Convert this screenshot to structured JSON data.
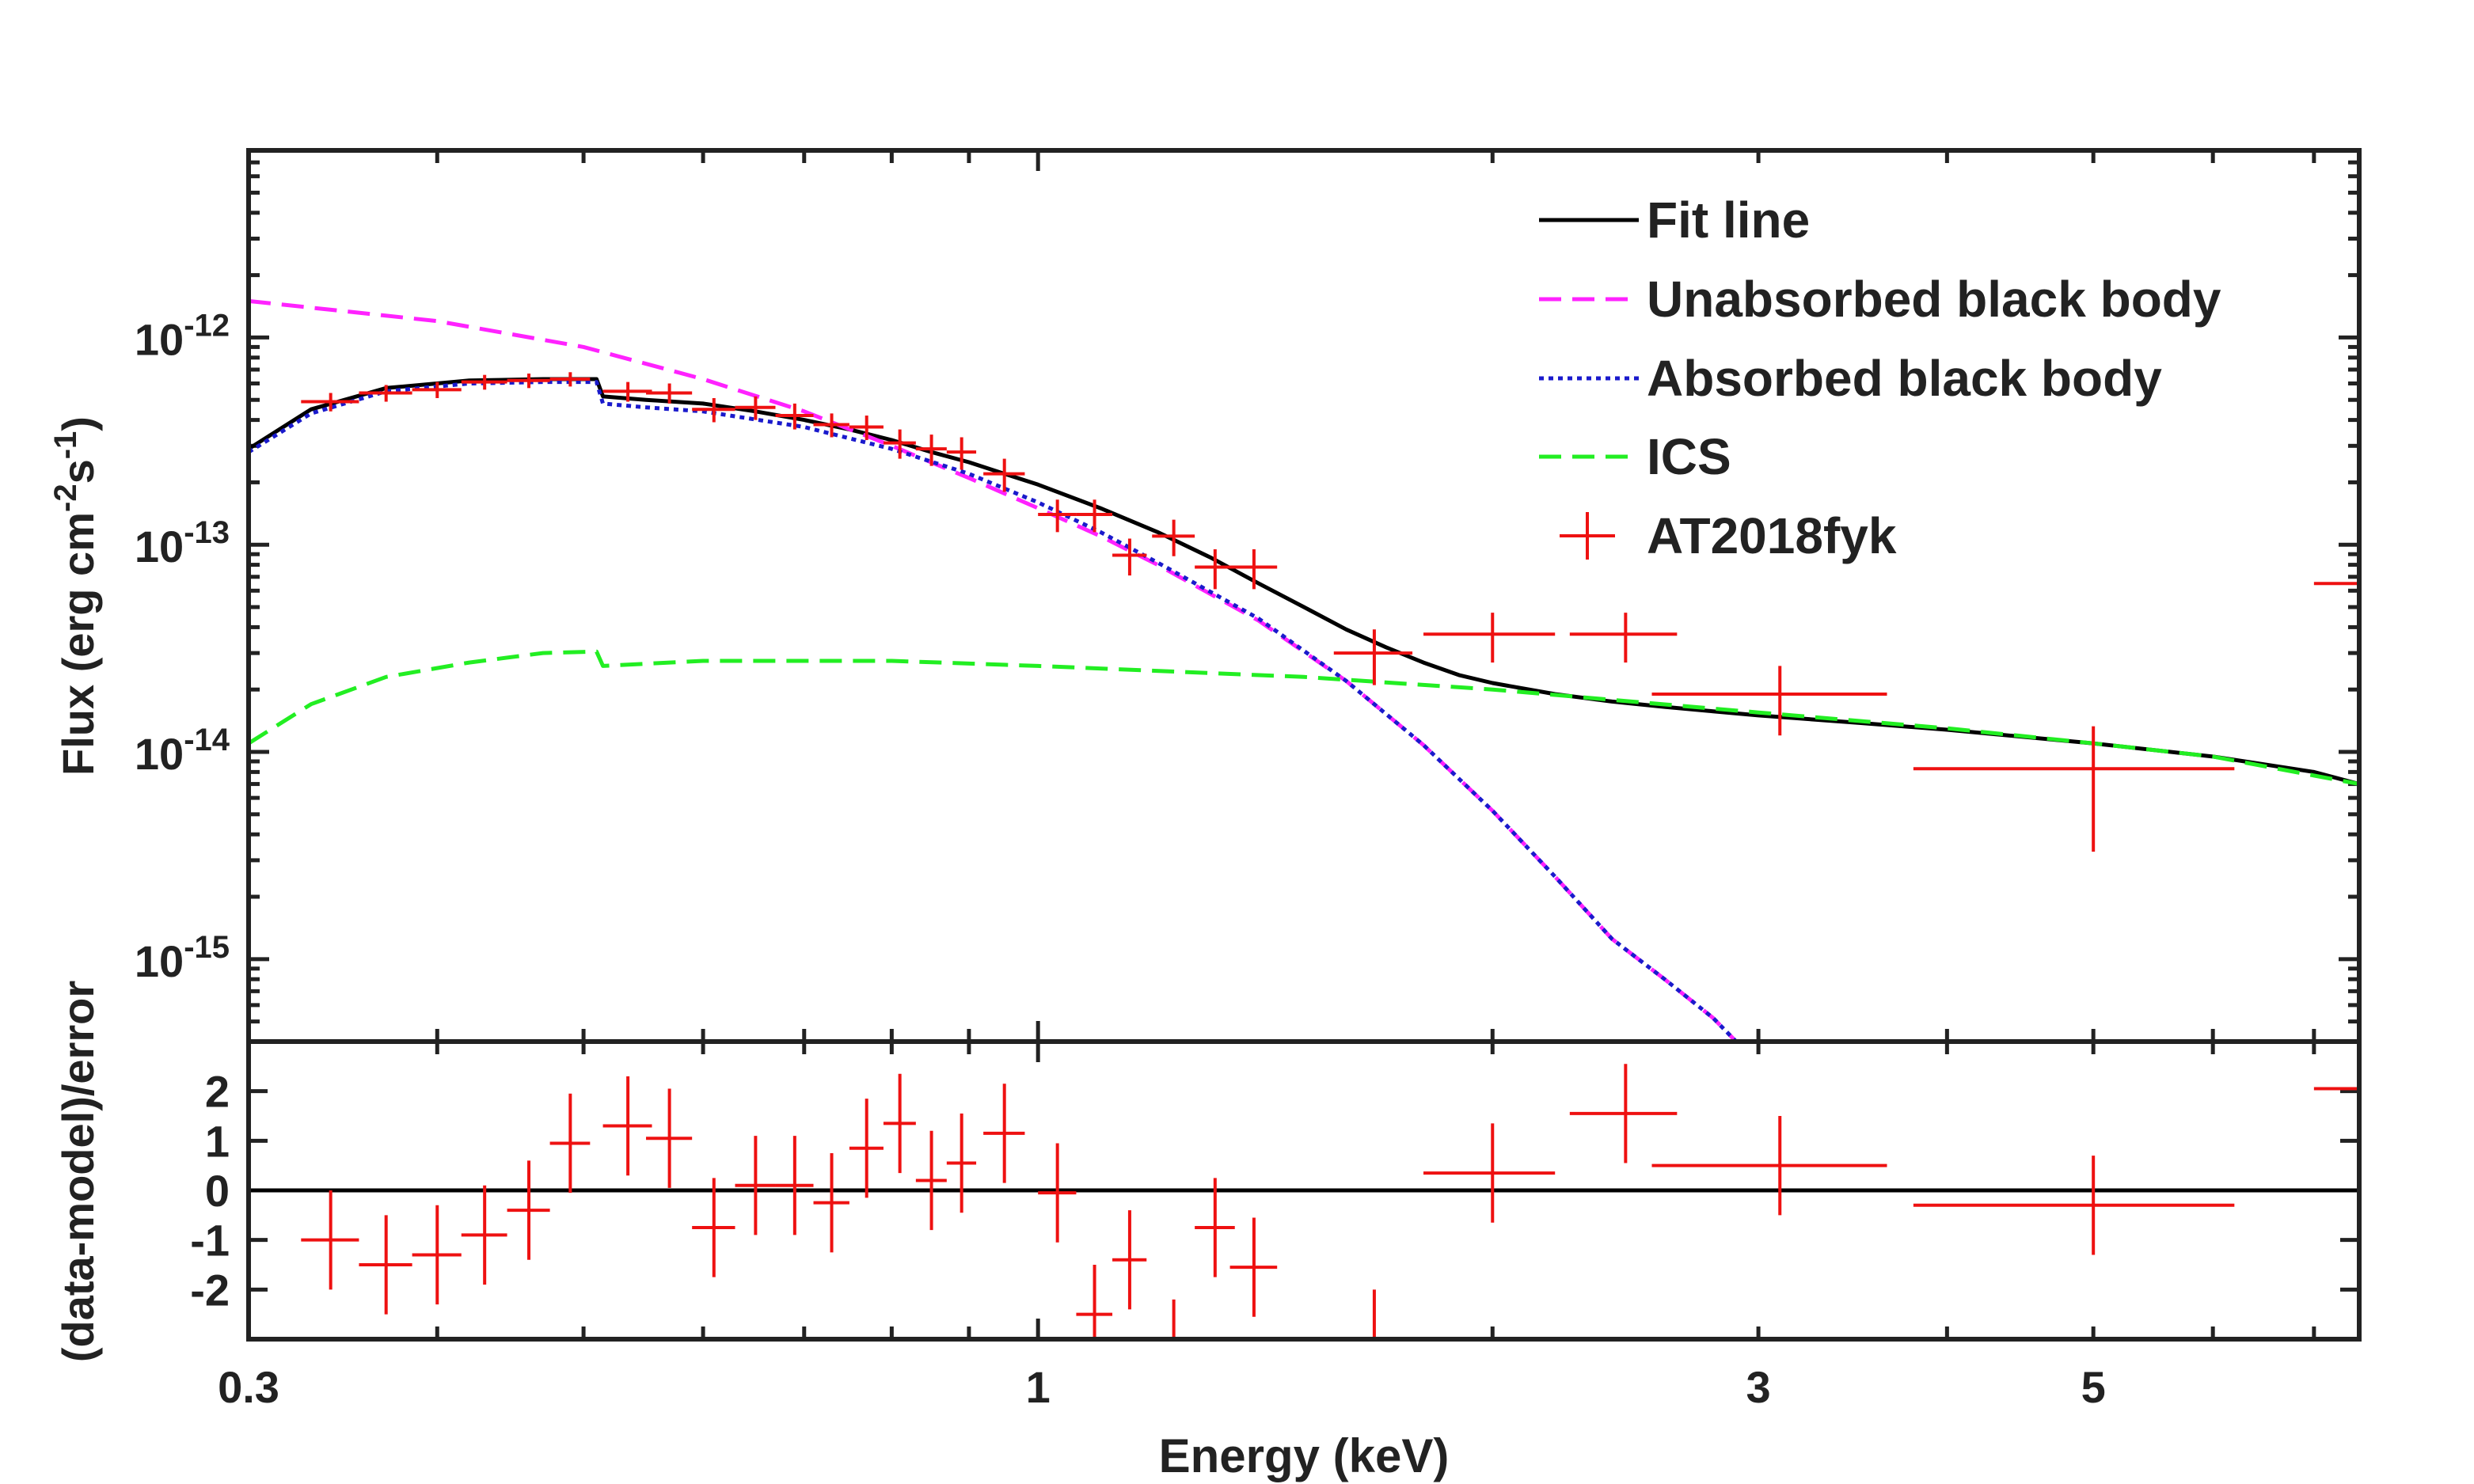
{
  "figure": {
    "title": "",
    "x_label": "Energy (keV)"
  },
  "colors": {
    "axis": "#222222",
    "fit_line": "#000000",
    "unabsorbed_bb": "#ff22ff",
    "absorbed_bb": "#1a1acc",
    "ics": "#22ee22",
    "data": "#ee1111"
  },
  "chart_data": [
    {
      "type": "line",
      "panel": "spectrum",
      "title": "",
      "xlabel": "Energy (keV)",
      "ylabel_text": "Flux (erg cm",
      "ylabel_sup1": "-2",
      "ylabel_mid": "s",
      "ylabel_sup2": "-1",
      "ylabel_close": ")",
      "xscale": "log",
      "yscale": "log",
      "xlim": [
        0.3,
        7.5
      ],
      "ylim": [
        4e-16,
        8e-12
      ],
      "yticks": [
        {
          "value": 1e-12,
          "base": "10",
          "exp": "-12"
        },
        {
          "value": 1e-13,
          "base": "10",
          "exp": "-13"
        },
        {
          "value": 1e-14,
          "base": "10",
          "exp": "-14"
        },
        {
          "value": 1e-15,
          "base": "10",
          "exp": "-15"
        }
      ],
      "legend": {
        "position": "top-right",
        "entries": [
          {
            "label": "Fit line",
            "style": "solid",
            "color": "#000000"
          },
          {
            "label": "Unabsorbed black body",
            "style": "dashed",
            "color": "#ff22ff"
          },
          {
            "label": "Absorbed black body",
            "style": "dotted",
            "color": "#1a1acc"
          },
          {
            "label": "ICS",
            "style": "dashed",
            "color": "#22ee22"
          },
          {
            "label": "AT2018fyk",
            "style": "errorbar",
            "color": "#ee1111"
          }
        ]
      },
      "series": [
        {
          "name": "Fit line",
          "style": "solid",
          "color": "#000000",
          "x": [
            0.3,
            0.33,
            0.37,
            0.42,
            0.47,
            0.51,
            0.515,
            0.55,
            0.6,
            0.65,
            0.7,
            0.75,
            0.8,
            0.85,
            0.9,
            0.95,
            1.0,
            1.1,
            1.2,
            1.3,
            1.4,
            1.5,
            1.6,
            1.7,
            1.8,
            1.9,
            2.0,
            2.2,
            2.4,
            2.6,
            2.8,
            3.0,
            3.5,
            4.0,
            5.0,
            6.0,
            7.0,
            7.5
          ],
          "y": [
            2.9e-13,
            4.5e-13,
            5.7e-13,
            6.2e-13,
            6.3e-13,
            6.3e-13,
            5.2e-13,
            5e-13,
            4.8e-13,
            4.4e-13,
            4e-13,
            3.6e-13,
            3.2e-13,
            2.8e-13,
            2.5e-13,
            2.2e-13,
            1.95e-13,
            1.5e-13,
            1.15e-13,
            8.7e-14,
            6.5e-14,
            5e-14,
            3.9e-14,
            3.2e-14,
            2.7e-14,
            2.35e-14,
            2.15e-14,
            1.9e-14,
            1.75e-14,
            1.65e-14,
            1.57e-14,
            1.5e-14,
            1.38e-14,
            1.28e-14,
            1.1e-14,
            9.5e-15,
            8e-15,
            7e-15
          ]
        },
        {
          "name": "Unabsorbed black body",
          "style": "dashed",
          "color": "#ff22ff",
          "x": [
            0.3,
            0.4,
            0.5,
            0.6,
            0.7,
            0.8,
            0.9,
            1.0,
            1.1,
            1.2,
            1.4,
            1.6,
            1.8,
            2.0,
            2.2,
            2.4,
            2.6,
            2.8,
            2.9
          ],
          "y": [
            1.5e-12,
            1.2e-12,
            9e-13,
            6.3e-13,
            4.4e-13,
            3e-13,
            2.1e-13,
            1.5e-13,
            1.1e-13,
            8e-14,
            4.3e-14,
            2.2e-14,
            1.08e-14,
            5.2e-15,
            2.5e-15,
            1.25e-15,
            8e-16,
            5.2e-16,
            4e-16
          ]
        },
        {
          "name": "Absorbed black body",
          "style": "dotted",
          "color": "#1a1acc",
          "x": [
            0.3,
            0.33,
            0.37,
            0.42,
            0.47,
            0.51,
            0.515,
            0.55,
            0.6,
            0.7,
            0.8,
            0.9,
            1.0,
            1.1,
            1.2,
            1.4,
            1.6,
            1.8,
            2.0,
            2.2,
            2.4,
            2.6,
            2.8,
            2.9
          ],
          "y": [
            2.8e-13,
            4.3e-13,
            5.5e-13,
            6e-13,
            6.1e-13,
            6.1e-13,
            4.8e-13,
            4.6e-13,
            4.4e-13,
            3.7e-13,
            2.9e-13,
            2.2e-13,
            1.6e-13,
            1.15e-13,
            8.2e-14,
            4.4e-14,
            2.2e-14,
            1.08e-14,
            5.2e-15,
            2.5e-15,
            1.25e-15,
            8e-16,
            5.2e-16,
            4e-16
          ]
        },
        {
          "name": "ICS",
          "style": "dashed",
          "color": "#22ee22",
          "x": [
            0.3,
            0.33,
            0.37,
            0.42,
            0.47,
            0.51,
            0.515,
            0.6,
            0.8,
            1.0,
            1.5,
            2.0,
            3.0,
            4.0,
            5.0,
            6.0,
            7.5
          ],
          "y": [
            1.1e-14,
            1.7e-14,
            2.3e-14,
            2.7e-14,
            3e-14,
            3.05e-14,
            2.6e-14,
            2.75e-14,
            2.75e-14,
            2.6e-14,
            2.3e-14,
            2e-14,
            1.55e-14,
            1.3e-14,
            1.1e-14,
            9.5e-15,
            7e-15
          ]
        }
      ],
      "data_points": {
        "name": "AT2018fyk",
        "color": "#ee1111",
        "x": [
          0.34,
          0.37,
          0.4,
          0.43,
          0.46,
          0.49,
          0.535,
          0.57,
          0.61,
          0.65,
          0.69,
          0.73,
          0.77,
          0.81,
          0.85,
          0.89,
          0.95,
          1.03,
          1.09,
          1.15,
          1.23,
          1.31,
          1.39,
          1.67,
          2.0,
          2.45,
          3.1,
          5.0,
          7.8
        ],
        "xerr": [
          0.015,
          0.015,
          0.015,
          0.015,
          0.015,
          0.015,
          0.02,
          0.02,
          0.02,
          0.02,
          0.02,
          0.02,
          0.02,
          0.02,
          0.02,
          0.02,
          0.03,
          0.03,
          0.03,
          0.03,
          0.04,
          0.04,
          0.05,
          0.1,
          0.2,
          0.2,
          0.55,
          1.2,
          0.8
        ],
        "y": [
          4.9e-13,
          5.4e-13,
          5.6e-13,
          6.1e-13,
          6.2e-13,
          6.3e-13,
          5.5e-13,
          5.4e-13,
          4.5e-13,
          4.6e-13,
          4.2e-13,
          3.8e-13,
          3.7e-13,
          3.1e-13,
          2.9e-13,
          2.8e-13,
          2.2e-13,
          1.4e-13,
          1.4e-13,
          8.9e-14,
          1.1e-13,
          7.8e-14,
          7.8e-14,
          3e-14,
          3.7e-14,
          3.7e-14,
          1.9e-14,
          8.3e-15,
          6.5e-14
        ],
        "yerr": [
          5e-14,
          5e-14,
          5e-14,
          5e-14,
          5e-14,
          5e-14,
          6e-14,
          6e-14,
          6e-14,
          6e-14,
          6e-14,
          5e-14,
          5e-14,
          5e-14,
          5e-14,
          5e-14,
          4e-14,
          2.5e-14,
          2.5e-14,
          1.8e-14,
          2.2e-14,
          1.7e-14,
          1.7e-14,
          9e-15,
          1e-14,
          1e-14,
          7e-15,
          5e-15,
          2.5e-14
        ]
      }
    },
    {
      "type": "scatter",
      "panel": "residuals",
      "ylabel": "(data-model)/error",
      "xscale": "log",
      "xlim": [
        0.3,
        7.5
      ],
      "ylim": [
        -3,
        3
      ],
      "yticks": [
        2,
        1,
        0,
        -1,
        -2
      ],
      "xticks": [
        {
          "value": 0.3,
          "label": "0.3"
        },
        {
          "value": 1,
          "label": "1"
        },
        {
          "value": 3,
          "label": "3"
        },
        {
          "value": 5,
          "label": "5"
        }
      ],
      "zero_line": 0,
      "data_points": {
        "name": "AT2018fyk residuals",
        "color": "#ee1111",
        "x": [
          0.34,
          0.37,
          0.4,
          0.43,
          0.46,
          0.49,
          0.535,
          0.57,
          0.61,
          0.65,
          0.69,
          0.73,
          0.77,
          0.81,
          0.85,
          0.89,
          0.95,
          1.03,
          1.09,
          1.15,
          1.23,
          1.31,
          1.39,
          1.67,
          2.0,
          2.45,
          3.1,
          5.0,
          7.8
        ],
        "xerr": [
          0.015,
          0.015,
          0.015,
          0.015,
          0.015,
          0.015,
          0.02,
          0.02,
          0.02,
          0.02,
          0.02,
          0.02,
          0.02,
          0.02,
          0.02,
          0.02,
          0.03,
          0.03,
          0.03,
          0.03,
          0.04,
          0.04,
          0.05,
          0.1,
          0.2,
          0.2,
          0.55,
          1.2,
          0.8
        ],
        "y": [
          -1.0,
          -1.5,
          -1.3,
          -0.9,
          -0.4,
          0.95,
          1.3,
          1.05,
          -0.75,
          0.1,
          0.1,
          -0.25,
          0.85,
          1.35,
          0.2,
          0.55,
          1.15,
          -0.05,
          -2.5,
          -1.4,
          -3.2,
          -0.75,
          -1.55,
          -3.0,
          0.35,
          1.55,
          0.5,
          -0.3,
          2.05
        ],
        "yerr": [
          1.0,
          1.0,
          1.0,
          1.0,
          1.0,
          1.0,
          1.0,
          1.0,
          1.0,
          1.0,
          1.0,
          1.0,
          1.0,
          1.0,
          1.0,
          1.0,
          1.0,
          1.0,
          1.0,
          1.0,
          1.0,
          1.0,
          1.0,
          1.0,
          1.0,
          1.0,
          1.0,
          1.0,
          1.0
        ]
      }
    }
  ]
}
